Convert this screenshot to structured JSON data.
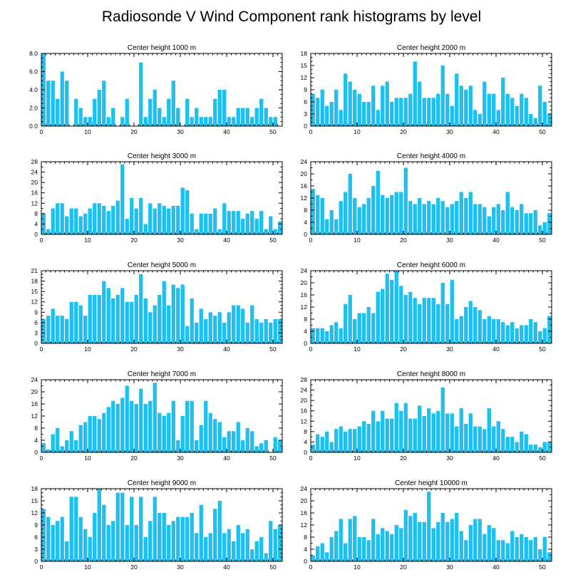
{
  "figure_title": "Radiosonde V Wind Component rank histograms by level",
  "colors": {
    "bar": "#1ec0f0",
    "axis": "#000000",
    "background": "#ffffff"
  },
  "chart_data": [
    {
      "type": "bar",
      "title": "Center height 1000 m",
      "categories": [
        0,
        1,
        2,
        3,
        4,
        5,
        6,
        7,
        8,
        9,
        10,
        11,
        12,
        13,
        14,
        15,
        16,
        17,
        18,
        19,
        20,
        21,
        22,
        23,
        24,
        25,
        26,
        27,
        28,
        29,
        30,
        31,
        32,
        33,
        34,
        35,
        36,
        37,
        38,
        39,
        40,
        41,
        42,
        43,
        44,
        45,
        46,
        47,
        48,
        49,
        50,
        51
      ],
      "values": [
        8,
        5,
        5,
        3,
        6,
        5,
        0,
        3,
        2,
        1,
        1,
        3,
        4,
        5,
        1,
        2,
        0,
        1,
        3,
        0,
        0,
        7,
        1,
        3,
        4,
        2,
        1,
        3,
        5,
        2,
        0,
        3,
        1,
        2,
        1,
        1,
        1,
        3,
        4,
        4,
        1,
        1,
        2,
        2,
        2,
        1,
        2,
        3,
        2,
        1,
        1,
        0
      ],
      "xlim": [
        0,
        52
      ],
      "xticks": [
        0,
        10,
        20,
        30,
        40,
        50
      ],
      "ylim": [
        0,
        8
      ],
      "yticks": [
        "0.0",
        "2.0",
        "4.0",
        "6.0",
        "8.0"
      ],
      "yminor_step": 0.5
    },
    {
      "type": "bar",
      "title": "Center height 2000 m",
      "categories": [
        0,
        1,
        2,
        3,
        4,
        5,
        6,
        7,
        8,
        9,
        10,
        11,
        12,
        13,
        14,
        15,
        16,
        17,
        18,
        19,
        20,
        21,
        22,
        23,
        24,
        25,
        26,
        27,
        28,
        29,
        30,
        31,
        32,
        33,
        34,
        35,
        36,
        37,
        38,
        39,
        40,
        41,
        42,
        43,
        44,
        45,
        46,
        47,
        48,
        49,
        50,
        51
      ],
      "values": [
        8,
        7,
        9,
        5,
        6,
        9,
        4,
        13,
        11,
        9,
        8,
        6,
        6,
        10,
        4,
        10,
        11,
        6,
        7,
        7,
        7,
        8,
        16,
        11,
        7,
        7,
        7,
        8,
        15,
        8,
        5,
        13,
        10,
        9,
        10,
        4,
        3,
        11,
        8,
        8,
        4,
        12,
        8,
        7,
        5,
        8,
        7,
        3,
        2,
        10,
        6,
        3
      ],
      "xlim": [
        0,
        52
      ],
      "xticks": [
        0,
        10,
        20,
        30,
        40,
        50
      ],
      "ylim": [
        0,
        18
      ],
      "yticks": [
        "0",
        "3",
        "6",
        "9",
        "12",
        "15",
        "18"
      ],
      "yminor_step": 1
    },
    {
      "type": "bar",
      "title": "Center height 3000 m",
      "categories": [
        0,
        1,
        2,
        3,
        4,
        5,
        6,
        7,
        8,
        9,
        10,
        11,
        12,
        13,
        14,
        15,
        16,
        17,
        18,
        19,
        20,
        21,
        22,
        23,
        24,
        25,
        26,
        27,
        28,
        29,
        30,
        31,
        32,
        33,
        34,
        35,
        36,
        37,
        38,
        39,
        40,
        41,
        42,
        43,
        44,
        45,
        46,
        47,
        48,
        49,
        50,
        51
      ],
      "values": [
        8,
        2,
        10,
        12,
        12,
        7,
        10,
        10,
        7,
        8,
        10,
        12,
        12,
        11,
        9,
        11,
        13,
        27,
        6,
        14,
        10,
        14,
        4,
        12,
        10,
        12,
        11,
        10,
        11,
        11,
        18,
        17,
        8,
        2,
        8,
        8,
        8,
        10,
        2,
        12,
        9,
        9,
        9,
        6,
        8,
        9,
        6,
        9,
        2,
        7,
        2,
        5
      ],
      "xlim": [
        0,
        52
      ],
      "xticks": [
        0,
        10,
        20,
        30,
        40,
        50
      ],
      "ylim": [
        0,
        28
      ],
      "yticks": [
        "0",
        "4",
        "8",
        "12",
        "16",
        "20",
        "24",
        "28"
      ],
      "yminor_step": 2
    },
    {
      "type": "bar",
      "title": "Center height 4000 m",
      "categories": [
        0,
        1,
        2,
        3,
        4,
        5,
        6,
        7,
        8,
        9,
        10,
        11,
        12,
        13,
        14,
        15,
        16,
        17,
        18,
        19,
        20,
        21,
        22,
        23,
        24,
        25,
        26,
        27,
        28,
        29,
        30,
        31,
        32,
        33,
        34,
        35,
        36,
        37,
        38,
        39,
        40,
        41,
        42,
        43,
        44,
        45,
        46,
        47,
        48,
        49,
        50,
        51
      ],
      "values": [
        15,
        13,
        12,
        5,
        8,
        5,
        11,
        14,
        20,
        12,
        9,
        10,
        12,
        16,
        21,
        13,
        12,
        13,
        14,
        14,
        22,
        11,
        10,
        12,
        10,
        11,
        10,
        12,
        11,
        9,
        10,
        11,
        14,
        12,
        14,
        10,
        10,
        9,
        6,
        9,
        10,
        8,
        14,
        9,
        8,
        10,
        7,
        7,
        8,
        3,
        4,
        7
      ],
      "xlim": [
        0,
        52
      ],
      "xticks": [
        0,
        10,
        20,
        30,
        40,
        50
      ],
      "ylim": [
        0,
        24
      ],
      "yticks": [
        "0",
        "4",
        "8",
        "12",
        "16",
        "20",
        "24"
      ],
      "yminor_step": 2
    },
    {
      "type": "bar",
      "title": "Center height 5000 m",
      "categories": [
        0,
        1,
        2,
        3,
        4,
        5,
        6,
        7,
        8,
        9,
        10,
        11,
        12,
        13,
        14,
        15,
        16,
        17,
        18,
        19,
        20,
        21,
        22,
        23,
        24,
        25,
        26,
        27,
        28,
        29,
        30,
        31,
        32,
        33,
        34,
        35,
        36,
        37,
        38,
        39,
        40,
        41,
        42,
        43,
        44,
        45,
        46,
        47,
        48,
        49,
        50,
        51
      ],
      "values": [
        7,
        8,
        10,
        8,
        8,
        7,
        12,
        12,
        11,
        8,
        14,
        14,
        14,
        18,
        16,
        13,
        14,
        16,
        12,
        12,
        14,
        20,
        13,
        9,
        11,
        14,
        18,
        11,
        17,
        16,
        17,
        5,
        13,
        6,
        10,
        7,
        9,
        8,
        9,
        6,
        9,
        11,
        11,
        10,
        6,
        11,
        7,
        6,
        7,
        6,
        7,
        7
      ],
      "xlim": [
        0,
        52
      ],
      "xticks": [
        0,
        10,
        20,
        30,
        40,
        50
      ],
      "ylim": [
        0,
        21
      ],
      "yticks": [
        "0",
        "3",
        "6",
        "9",
        "12",
        "15",
        "18",
        "21"
      ],
      "yminor_step": 1
    },
    {
      "type": "bar",
      "title": "Center height 6000 m",
      "categories": [
        0,
        1,
        2,
        3,
        4,
        5,
        6,
        7,
        8,
        9,
        10,
        11,
        12,
        13,
        14,
        15,
        16,
        17,
        18,
        19,
        20,
        21,
        22,
        23,
        24,
        25,
        26,
        27,
        28,
        29,
        30,
        31,
        32,
        33,
        34,
        35,
        36,
        37,
        38,
        39,
        40,
        41,
        42,
        43,
        44,
        45,
        46,
        47,
        48,
        49,
        50,
        51
      ],
      "values": [
        5,
        5,
        5,
        4,
        6,
        7,
        5,
        13,
        16,
        8,
        10,
        10,
        12,
        10,
        17,
        18,
        23,
        21,
        24,
        19,
        16,
        17,
        15,
        13,
        15,
        15,
        15,
        13,
        20,
        13,
        21,
        8,
        9,
        12,
        14,
        12,
        11,
        8,
        9,
        8,
        8,
        7,
        6,
        7,
        5,
        6,
        6,
        8,
        7,
        4,
        5,
        9
      ],
      "xlim": [
        0,
        52
      ],
      "xticks": [
        0,
        10,
        20,
        30,
        40,
        50
      ],
      "ylim": [
        0,
        24
      ],
      "yticks": [
        "0",
        "4",
        "8",
        "12",
        "16",
        "20",
        "24"
      ],
      "yminor_step": 2
    },
    {
      "type": "bar",
      "title": "Center height 7000 m",
      "categories": [
        0,
        1,
        2,
        3,
        4,
        5,
        6,
        7,
        8,
        9,
        10,
        11,
        12,
        13,
        14,
        15,
        16,
        17,
        18,
        19,
        20,
        21,
        22,
        23,
        24,
        25,
        26,
        27,
        28,
        29,
        30,
        31,
        32,
        33,
        34,
        35,
        36,
        37,
        38,
        39,
        40,
        41,
        42,
        43,
        44,
        45,
        46,
        47,
        48,
        49,
        50,
        51
      ],
      "values": [
        3,
        1,
        6,
        8,
        2,
        4,
        7,
        4,
        9,
        10,
        12,
        12,
        11,
        13,
        15,
        17,
        16,
        18,
        22,
        17,
        16,
        21,
        16,
        17,
        23,
        13,
        12,
        13,
        17,
        4,
        12,
        17,
        17,
        4,
        9,
        17,
        13,
        11,
        10,
        5,
        7,
        7,
        10,
        4,
        8,
        7,
        2,
        3,
        4,
        0,
        5,
        4
      ],
      "xlim": [
        0,
        52
      ],
      "xticks": [
        0,
        10,
        20,
        30,
        40,
        50
      ],
      "ylim": [
        0,
        24
      ],
      "yticks": [
        "0",
        "4",
        "8",
        "12",
        "16",
        "20",
        "24"
      ],
      "yminor_step": 2
    },
    {
      "type": "bar",
      "title": "Center height 8000 m",
      "categories": [
        0,
        1,
        2,
        3,
        4,
        5,
        6,
        7,
        8,
        9,
        10,
        11,
        12,
        13,
        14,
        15,
        16,
        17,
        18,
        19,
        20,
        21,
        22,
        23,
        24,
        25,
        26,
        27,
        28,
        29,
        30,
        31,
        32,
        33,
        34,
        35,
        36,
        37,
        38,
        39,
        40,
        41,
        42,
        43,
        44,
        45,
        46,
        47,
        48,
        49,
        50,
        51
      ],
      "values": [
        3,
        7,
        6,
        8,
        4,
        9,
        10,
        8,
        9,
        9,
        10,
        12,
        11,
        16,
        12,
        16,
        13,
        13,
        19,
        16,
        19,
        13,
        13,
        18,
        14,
        17,
        15,
        16,
        25,
        15,
        15,
        10,
        17,
        11,
        15,
        10,
        10,
        9,
        17,
        10,
        12,
        9,
        6,
        6,
        4,
        8,
        7,
        3,
        3,
        2,
        4,
        4
      ],
      "xlim": [
        0,
        52
      ],
      "xticks": [
        0,
        10,
        20,
        30,
        40,
        50
      ],
      "ylim": [
        0,
        28
      ],
      "yticks": [
        "0",
        "4",
        "8",
        "12",
        "16",
        "20",
        "24",
        "28"
      ],
      "yminor_step": 2
    },
    {
      "type": "bar",
      "title": "Center height 9000 m",
      "categories": [
        0,
        1,
        2,
        3,
        4,
        5,
        6,
        7,
        8,
        9,
        10,
        11,
        12,
        13,
        14,
        15,
        16,
        17,
        18,
        19,
        20,
        21,
        22,
        23,
        24,
        25,
        26,
        27,
        28,
        29,
        30,
        31,
        32,
        33,
        34,
        35,
        36,
        37,
        38,
        39,
        40,
        41,
        42,
        43,
        44,
        45,
        46,
        47,
        48,
        49,
        50,
        51
      ],
      "values": [
        13,
        11,
        9,
        10,
        11,
        5,
        16,
        16,
        11,
        8,
        6,
        12,
        18,
        14,
        9,
        10,
        17,
        17,
        9,
        16,
        9,
        16,
        6,
        10,
        16,
        12,
        12,
        9,
        10,
        11,
        11,
        11,
        12,
        7,
        14,
        6,
        7,
        13,
        15,
        7,
        8,
        5,
        9,
        7,
        8,
        3,
        5,
        6,
        2,
        10,
        8,
        9
      ],
      "xlim": [
        0,
        52
      ],
      "xticks": [
        0,
        10,
        20,
        30,
        40,
        50
      ],
      "ylim": [
        0,
        18
      ],
      "yticks": [
        "0",
        "3",
        "6",
        "9",
        "12",
        "15",
        "18"
      ],
      "yminor_step": 1
    },
    {
      "type": "bar",
      "title": "Center height 10000 m",
      "categories": [
        0,
        1,
        2,
        3,
        4,
        5,
        6,
        7,
        8,
        9,
        10,
        11,
        12,
        13,
        14,
        15,
        16,
        17,
        18,
        19,
        20,
        21,
        22,
        23,
        24,
        25,
        26,
        27,
        28,
        29,
        30,
        31,
        32,
        33,
        34,
        35,
        36,
        37,
        38,
        39,
        40,
        41,
        42,
        43,
        44,
        45,
        46,
        47,
        48,
        49,
        50,
        51
      ],
      "values": [
        2,
        5,
        6,
        3,
        8,
        10,
        14,
        6,
        14,
        15,
        8,
        8,
        7,
        14,
        9,
        11,
        10,
        9,
        12,
        11,
        17,
        15,
        16,
        13,
        13,
        23,
        11,
        13,
        16,
        13,
        14,
        16,
        10,
        7,
        12,
        14,
        14,
        9,
        12,
        11,
        7,
        7,
        6,
        10,
        8,
        9,
        8,
        7,
        8,
        4,
        8,
        3
      ],
      "xlim": [
        0,
        52
      ],
      "xticks": [
        0,
        10,
        20,
        30,
        40,
        50
      ],
      "ylim": [
        0,
        24
      ],
      "yticks": [
        "0",
        "4",
        "8",
        "12",
        "16",
        "20",
        "24"
      ],
      "yminor_step": 2
    }
  ]
}
